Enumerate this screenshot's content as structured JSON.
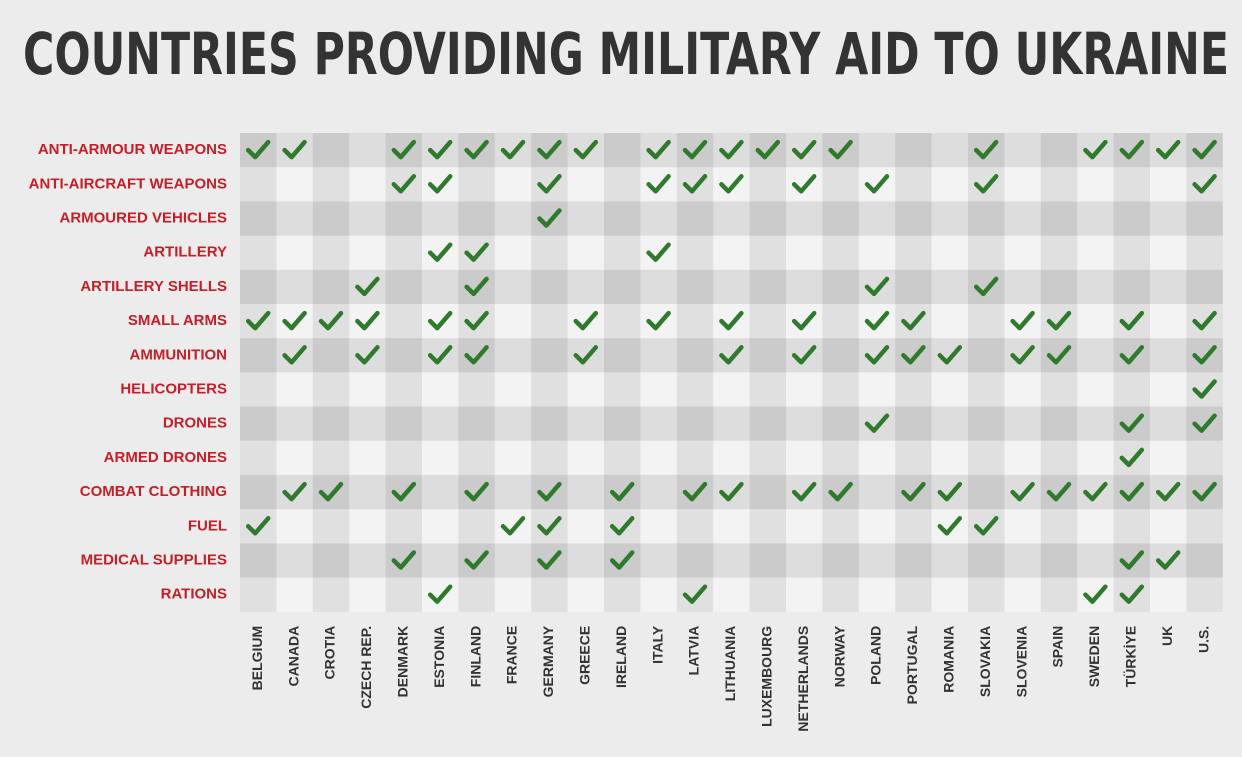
{
  "header": {
    "title": "COUNTRIES PROVIDING MILITARY AID TO UKRAINE"
  },
  "table": {
    "columns": [
      "BELGIUM",
      "CANADA",
      "CROTIA",
      "CZECH REP.",
      "DENMARK",
      "ESTONIA",
      "FINLAND",
      "FRANCE",
      "GERMANY",
      "GREECE",
      "IRELAND",
      "ITALY",
      "LATVIA",
      "LITHUANIA",
      "LUXEMBOURG",
      "NETHERLANDS",
      "NORWAY",
      "POLAND",
      "PORTUGAL",
      "ROMANIA",
      "SLOVAKIA",
      "SLOVENIA",
      "SPAIN",
      "SWEDEN",
      "TÜRKİYE",
      "UK",
      "U.S."
    ],
    "rows": [
      {
        "label": "ANTI-ARMOUR WEAPONS",
        "cells": [
          true,
          true,
          false,
          false,
          true,
          true,
          true,
          true,
          true,
          true,
          false,
          true,
          true,
          true,
          true,
          true,
          true,
          false,
          false,
          false,
          true,
          false,
          false,
          true,
          true,
          true,
          true
        ]
      },
      {
        "label": "ANTI-AIRCRAFT WEAPONS",
        "cells": [
          false,
          false,
          false,
          false,
          true,
          true,
          false,
          false,
          true,
          false,
          false,
          true,
          true,
          true,
          false,
          true,
          false,
          true,
          false,
          false,
          true,
          false,
          false,
          false,
          false,
          false,
          true
        ]
      },
      {
        "label": "ARMOURED VEHICLES",
        "cells": [
          false,
          false,
          false,
          false,
          false,
          false,
          false,
          false,
          true,
          false,
          false,
          false,
          false,
          false,
          false,
          false,
          false,
          false,
          false,
          false,
          false,
          false,
          false,
          false,
          false,
          false,
          false
        ]
      },
      {
        "label": "ARTILLERY",
        "cells": [
          false,
          false,
          false,
          false,
          false,
          true,
          true,
          false,
          false,
          false,
          false,
          true,
          false,
          false,
          false,
          false,
          false,
          false,
          false,
          false,
          false,
          false,
          false,
          false,
          false,
          false,
          false
        ]
      },
      {
        "label": "ARTILLERY SHELLS",
        "cells": [
          false,
          false,
          false,
          true,
          false,
          false,
          true,
          false,
          false,
          false,
          false,
          false,
          false,
          false,
          false,
          false,
          false,
          true,
          false,
          false,
          true,
          false,
          false,
          false,
          false,
          false,
          false
        ]
      },
      {
        "label": "SMALL ARMS",
        "cells": [
          true,
          true,
          true,
          true,
          false,
          true,
          true,
          false,
          false,
          true,
          false,
          true,
          false,
          true,
          false,
          true,
          false,
          true,
          true,
          false,
          false,
          true,
          true,
          false,
          true,
          false,
          true
        ]
      },
      {
        "label": "AMMUNITION",
        "cells": [
          false,
          true,
          false,
          true,
          false,
          true,
          true,
          false,
          false,
          true,
          false,
          false,
          false,
          true,
          false,
          true,
          false,
          true,
          true,
          true,
          false,
          true,
          true,
          false,
          true,
          false,
          true
        ]
      },
      {
        "label": "HELICOPTERS",
        "cells": [
          false,
          false,
          false,
          false,
          false,
          false,
          false,
          false,
          false,
          false,
          false,
          false,
          false,
          false,
          false,
          false,
          false,
          false,
          false,
          false,
          false,
          false,
          false,
          false,
          false,
          false,
          true
        ]
      },
      {
        "label": "DRONES",
        "cells": [
          false,
          false,
          false,
          false,
          false,
          false,
          false,
          false,
          false,
          false,
          false,
          false,
          false,
          false,
          false,
          false,
          false,
          true,
          false,
          false,
          false,
          false,
          false,
          false,
          true,
          false,
          true
        ]
      },
      {
        "label": "ARMED DRONES",
        "cells": [
          false,
          false,
          false,
          false,
          false,
          false,
          false,
          false,
          false,
          false,
          false,
          false,
          false,
          false,
          false,
          false,
          false,
          false,
          false,
          false,
          false,
          false,
          false,
          false,
          true,
          false,
          false
        ]
      },
      {
        "label": "COMBAT CLOTHING",
        "cells": [
          false,
          true,
          true,
          false,
          true,
          false,
          true,
          false,
          true,
          false,
          true,
          false,
          true,
          true,
          false,
          true,
          true,
          false,
          true,
          true,
          false,
          true,
          true,
          true,
          true,
          true,
          true
        ]
      },
      {
        "label": "FUEL",
        "cells": [
          true,
          false,
          false,
          false,
          false,
          false,
          false,
          true,
          true,
          false,
          true,
          false,
          false,
          false,
          false,
          false,
          false,
          false,
          false,
          true,
          true,
          false,
          false,
          false,
          false,
          false,
          false
        ]
      },
      {
        "label": "MEDICAL SUPPLIES",
        "cells": [
          false,
          false,
          false,
          false,
          true,
          false,
          true,
          false,
          true,
          false,
          true,
          false,
          false,
          false,
          false,
          false,
          false,
          false,
          false,
          false,
          false,
          false,
          false,
          false,
          true,
          true,
          false
        ]
      },
      {
        "label": "RATIONS",
        "cells": [
          false,
          false,
          false,
          false,
          false,
          true,
          false,
          false,
          false,
          false,
          false,
          false,
          true,
          false,
          false,
          false,
          false,
          false,
          false,
          false,
          false,
          false,
          false,
          true,
          true,
          false,
          false
        ]
      }
    ]
  }
}
